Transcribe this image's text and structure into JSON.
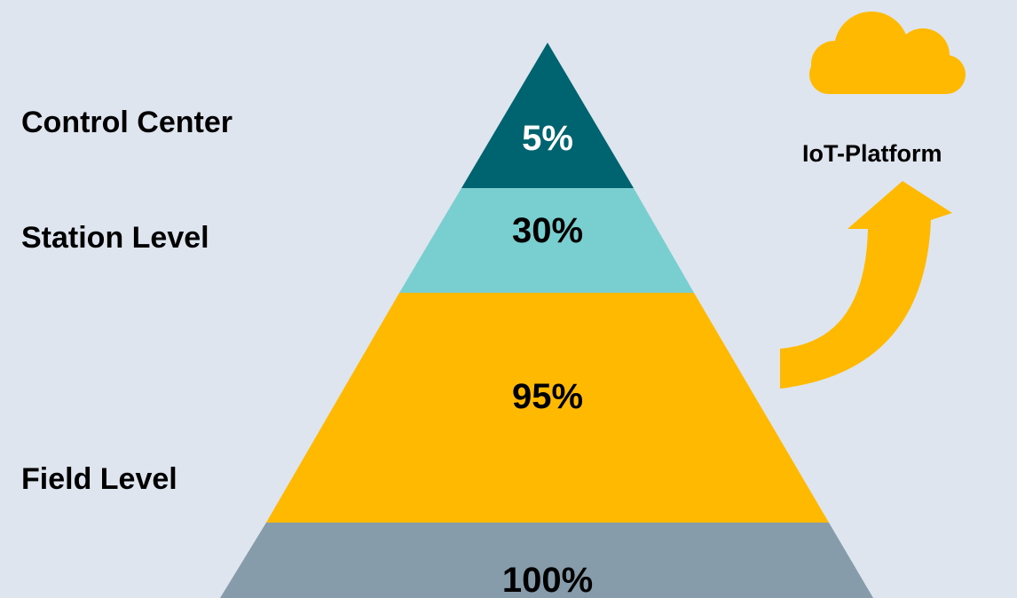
{
  "levels": {
    "control_center": "Control Center",
    "station_level": "Station Level",
    "field_level": "Field Level"
  },
  "pyramid": [
    {
      "id": "tier-top",
      "value": "5%",
      "color": "#006470",
      "text_color": "#ffffff"
    },
    {
      "id": "tier-second",
      "value": "30%",
      "color": "#79cfcf",
      "text_color": "#000000"
    },
    {
      "id": "tier-third",
      "value": "95%",
      "color": "#ffb900",
      "text_color": "#000000"
    },
    {
      "id": "tier-bottom",
      "value": "100%",
      "color": "#879cab",
      "text_color": "#000000"
    }
  ],
  "cloud": {
    "label": "IoT-Platform",
    "icon": "cloud-icon",
    "color": "#ffb900"
  },
  "arrow": {
    "icon": "curved-arrow-up-icon",
    "color": "#ffb900"
  },
  "background": "#dee5ee"
}
